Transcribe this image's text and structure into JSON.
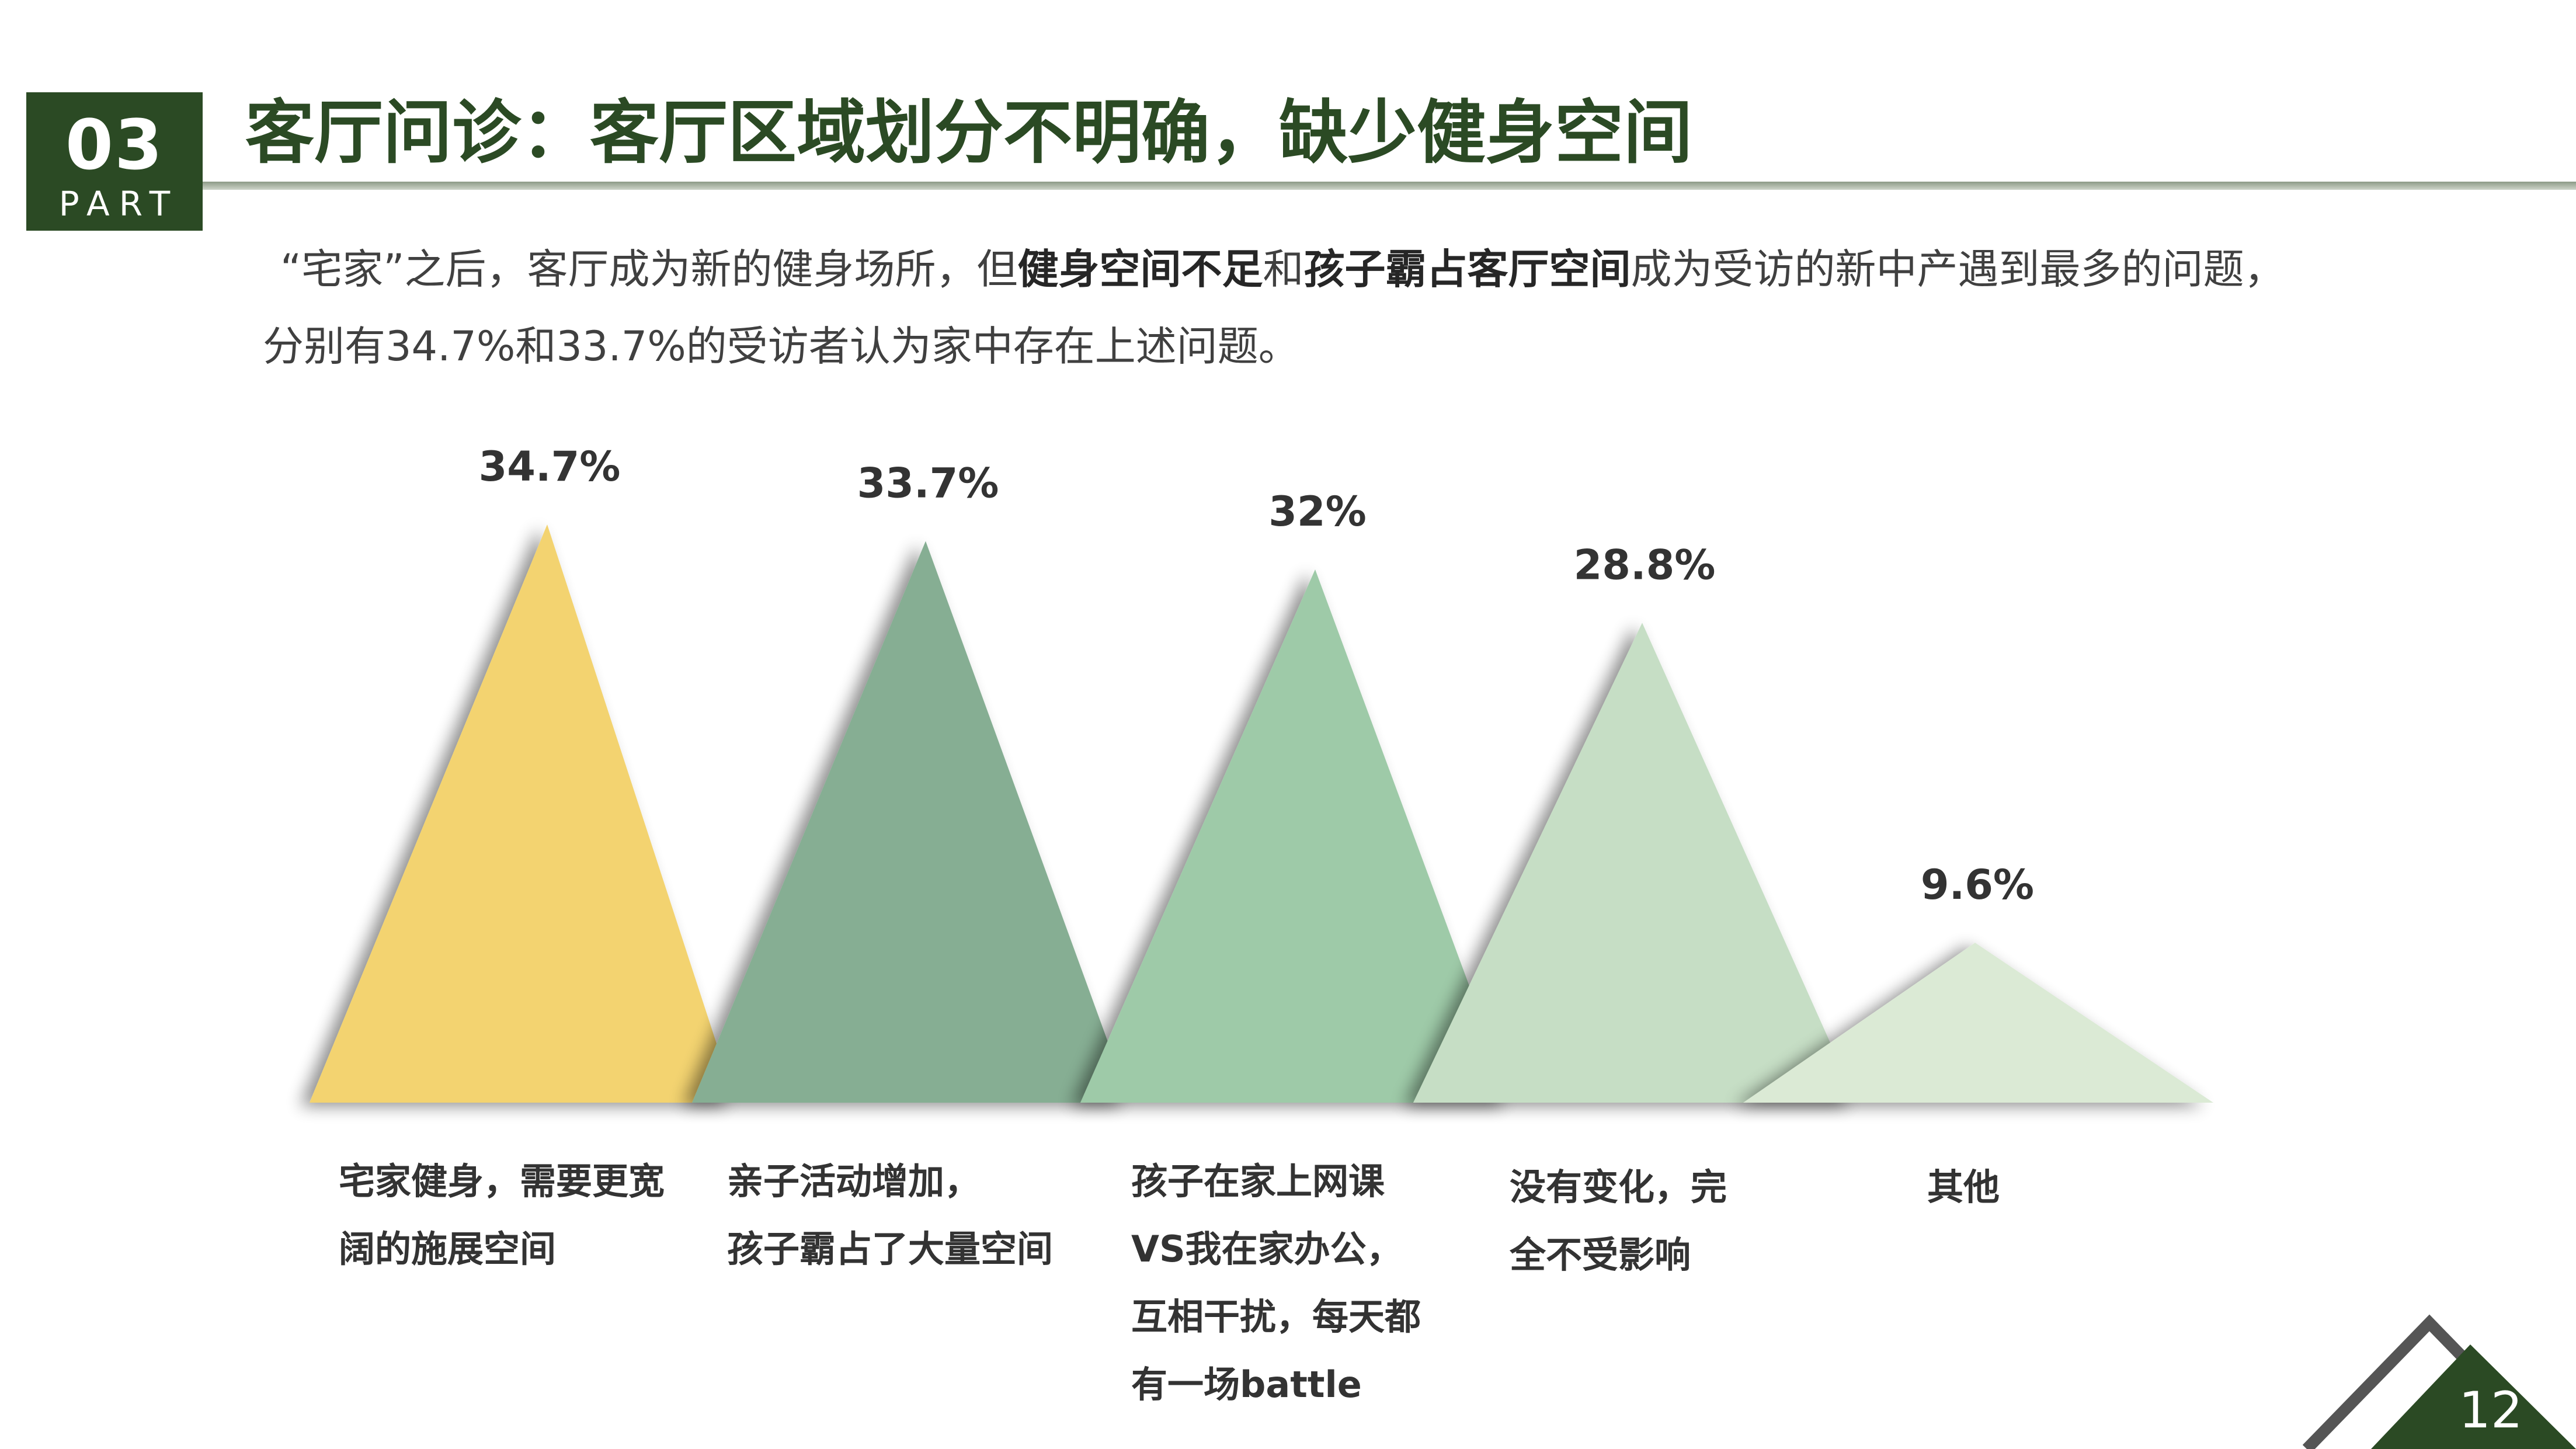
{
  "header": {
    "badge_number": "03",
    "badge_part": "PART",
    "title": "客厅问诊：客厅区域划分不明确，缺少健身空间"
  },
  "intro": {
    "line1_a": "“宅家”之后，客厅成为新的健身场所，但",
    "line1_b": "健身空间不足",
    "line1_c": "和",
    "line1_d": "孩子霸占客厅空间",
    "line1_e": "成为受访的新中产遇到最多的问题，",
    "line2": "分别有34.7%和33.7%的受访者认为家中存在上述问题。"
  },
  "chart_data": {
    "type": "bar",
    "categories": [
      "宅家健身，需要更宽\n阔的施展空间",
      "亲子活动增加，\n孩子霸占了大量空间",
      "孩子在家上网课\nVS我在家办公，\n互相干扰，每天都\n有一场battle",
      "没有变化，完\n全不受影响",
      "其他"
    ],
    "values": [
      34.7,
      33.7,
      32,
      28.8,
      9.6
    ],
    "data_labels": [
      "34.7%",
      "33.7%",
      "32%",
      "28.8%",
      "9.6%"
    ],
    "colors": [
      "#f3d36f",
      "#86ae93",
      "#9ecaa8",
      "#c6dec5",
      "#dbead5"
    ],
    "unit": "%",
    "ylim": [
      0,
      34.7
    ],
    "grid": false,
    "legend": "none"
  },
  "footer": {
    "page_number": "12",
    "accent": "#2b4a24"
  }
}
